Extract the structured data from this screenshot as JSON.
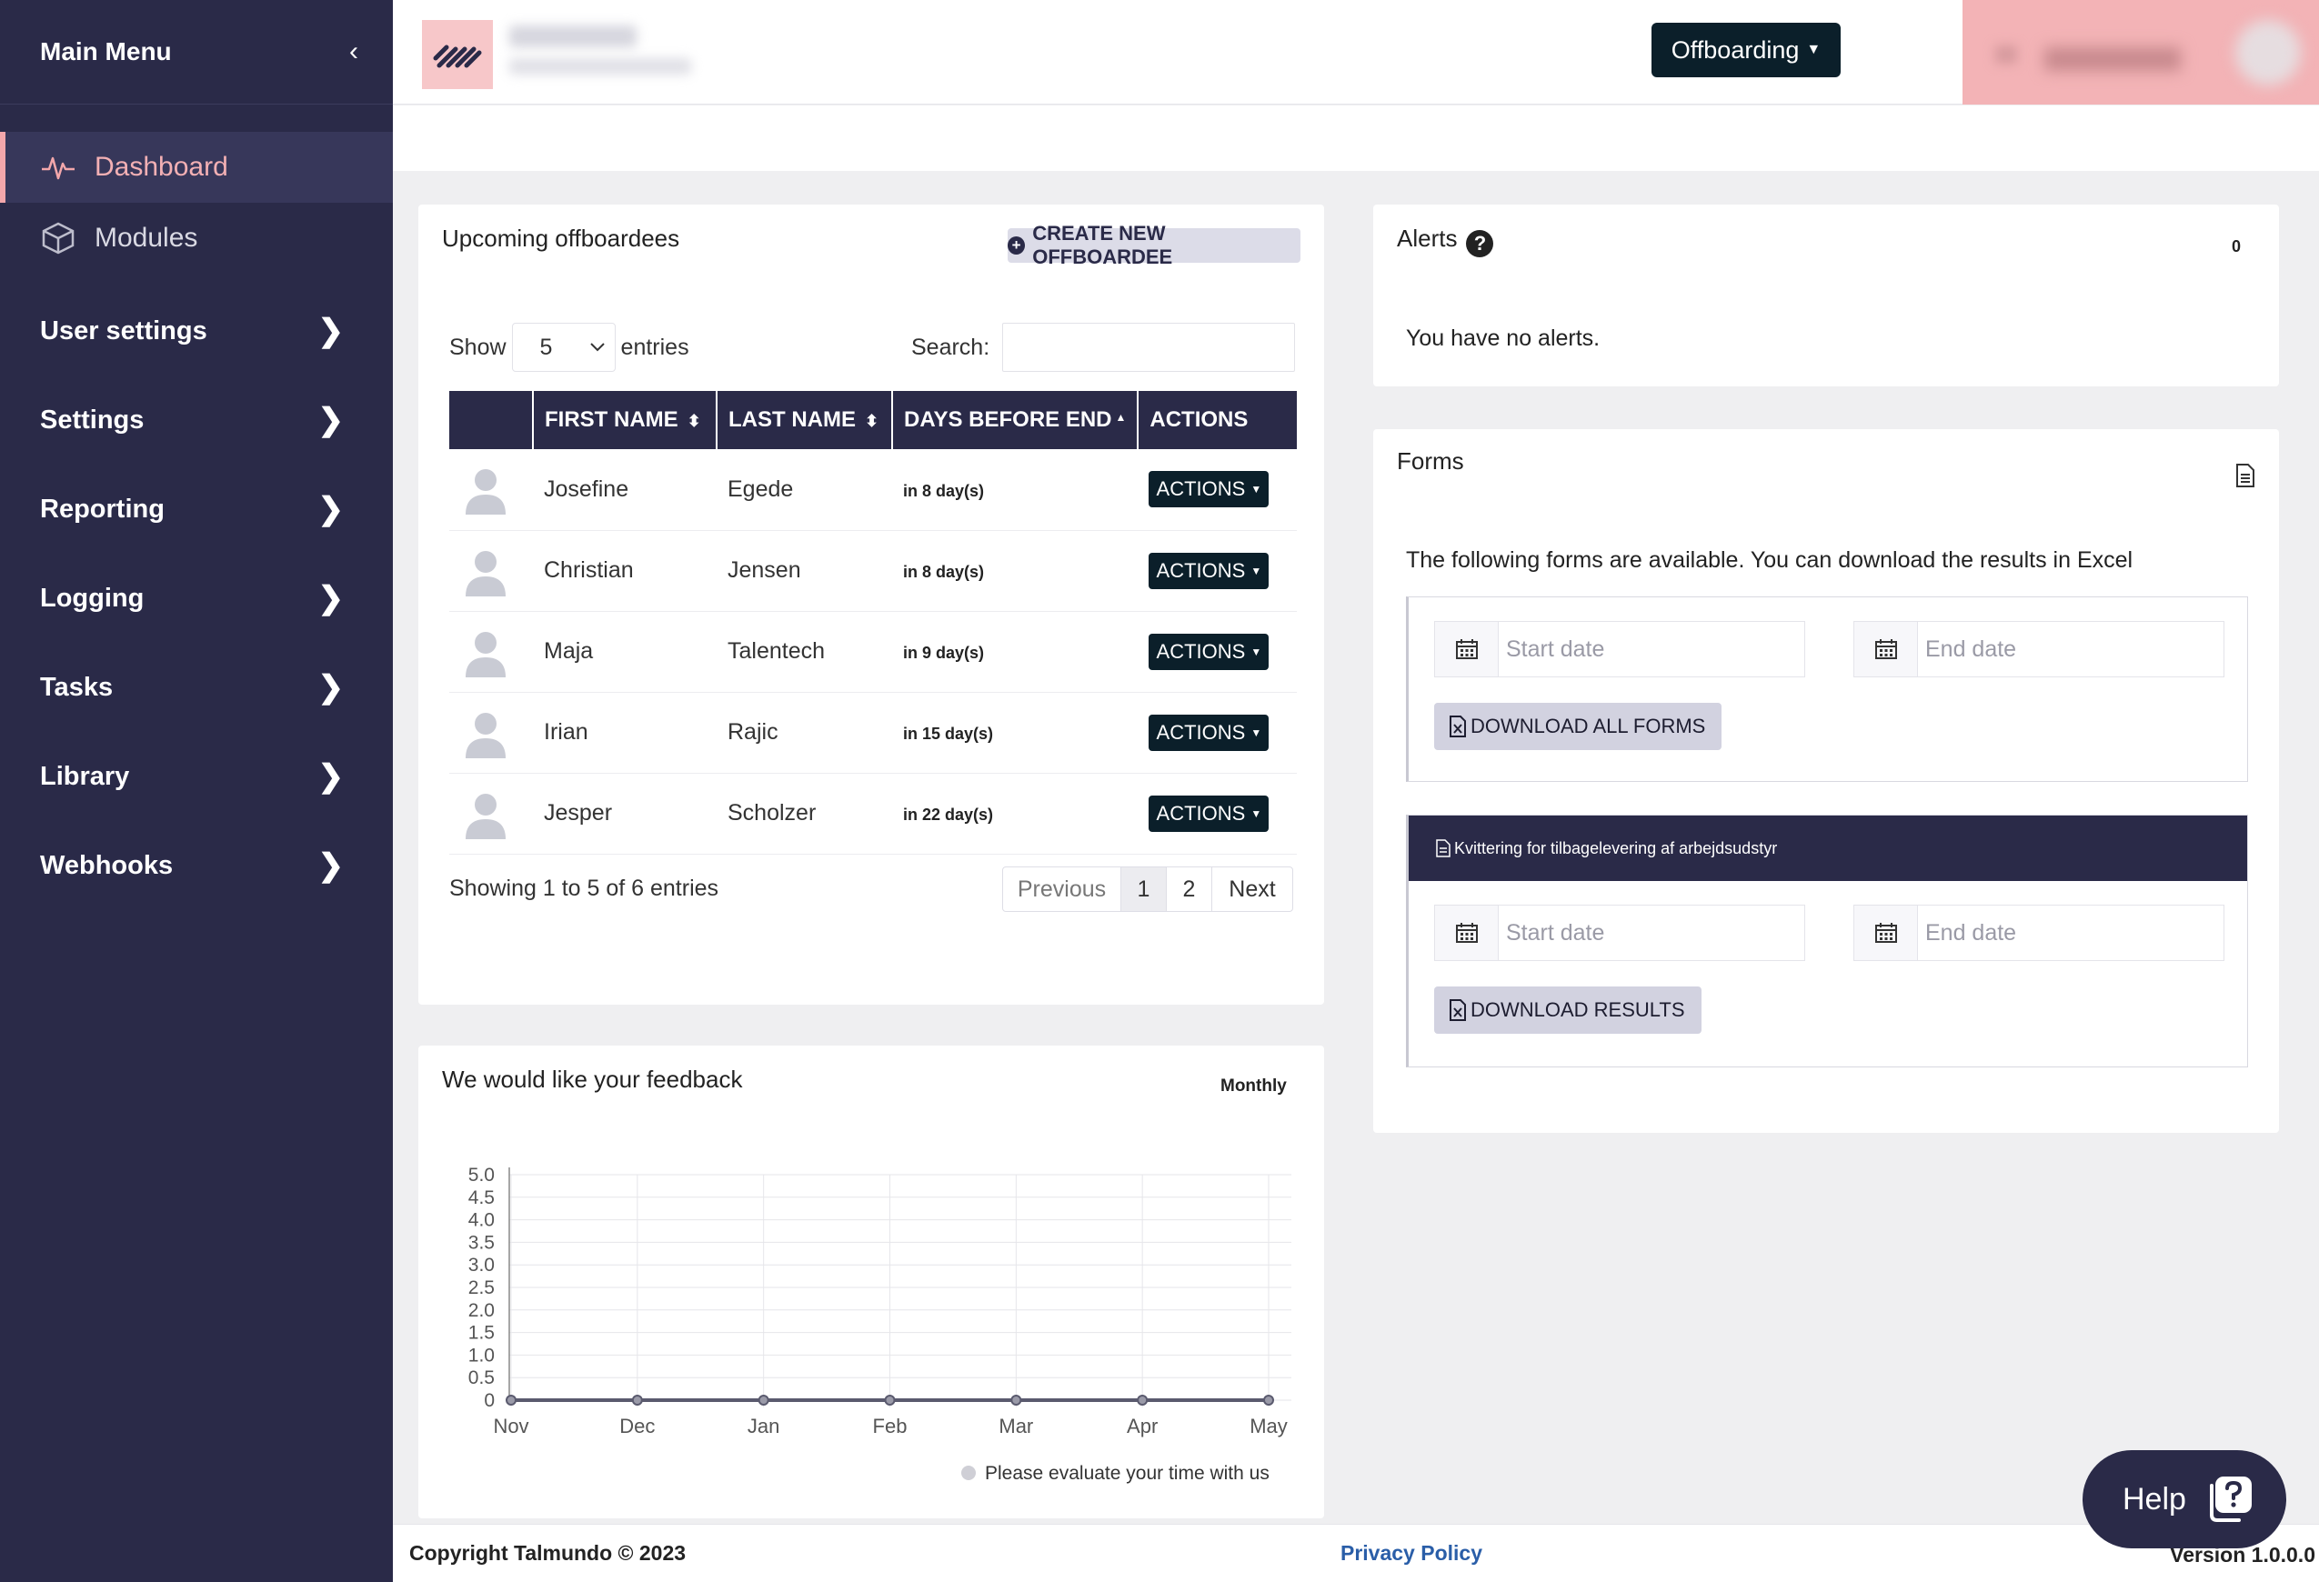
{
  "sidebar": {
    "title": "Main Menu",
    "top_items": [
      {
        "label": "Dashboard",
        "icon": "pulse-icon",
        "active": true
      },
      {
        "label": "Modules",
        "icon": "cube-icon",
        "active": false
      }
    ],
    "groups": [
      "User settings",
      "Settings",
      "Reporting",
      "Logging",
      "Tasks",
      "Library",
      "Webhooks"
    ]
  },
  "topbar": {
    "module_button": "Offboarding"
  },
  "upcoming": {
    "title": "Upcoming offboardees",
    "create_button": "CREATE NEW OFFBOARDEE",
    "show_label": "Show",
    "show_value": "5",
    "entries_label": "entries",
    "search_label": "Search:",
    "search_value": "",
    "columns": [
      "",
      "FIRST NAME",
      "LAST NAME",
      "DAYS BEFORE END",
      "ACTIONS"
    ],
    "rows": [
      {
        "first": "Josefine",
        "last": "Egede",
        "days": "in 8 day(s)",
        "action": "ACTIONS"
      },
      {
        "first": "Christian",
        "last": "Jensen",
        "days": "in 8 day(s)",
        "action": "ACTIONS"
      },
      {
        "first": "Maja",
        "last": "Talentech",
        "days": "in 9 day(s)",
        "action": "ACTIONS"
      },
      {
        "first": "Irian",
        "last": "Rajic",
        "days": "in 15 day(s)",
        "action": "ACTIONS"
      },
      {
        "first": "Jesper",
        "last": "Scholzer",
        "days": "in 22 day(s)",
        "action": "ACTIONS"
      }
    ],
    "showing": "Showing 1 to 5 of 6 entries",
    "pager": {
      "prev": "Previous",
      "pages": [
        "1",
        "2"
      ],
      "next": "Next",
      "current": "1"
    }
  },
  "feedback": {
    "title": "We would like your feedback",
    "period": "Monthly"
  },
  "chart_data": {
    "type": "line",
    "categories": [
      "Nov",
      "Dec",
      "Jan",
      "Feb",
      "Mar",
      "Apr",
      "May"
    ],
    "series": [
      {
        "name": "Please evaluate your time with us",
        "values": [
          0,
          0,
          0,
          0,
          0,
          0,
          0
        ]
      }
    ],
    "ylim": [
      0,
      5
    ],
    "yticks": [
      "0",
      "0.5",
      "1.0",
      "1.5",
      "2.0",
      "2.5",
      "3.0",
      "3.5",
      "4.0",
      "4.5",
      "5.0"
    ],
    "grid": true,
    "legend": "bottom-right",
    "colors": {
      "line": "#5a5a6e",
      "legend_dot": "#cfcfd6"
    }
  },
  "alerts": {
    "title": "Alerts",
    "count": "0",
    "message": "You have no alerts."
  },
  "forms": {
    "title": "Forms",
    "description": "The following forms are available. You can download the results in Excel",
    "all": {
      "start_placeholder": "Start date",
      "end_placeholder": "End date",
      "button": "DOWNLOAD ALL FORMS"
    },
    "form_items": [
      {
        "name": "Kvittering for tilbagelevering af arbejdsudstyr",
        "start_placeholder": "Start date",
        "end_placeholder": "End date",
        "button": "DOWNLOAD RESULTS"
      }
    ]
  },
  "footer": {
    "copyright": "Copyright Talmundo © 2023",
    "privacy": "Privacy Policy",
    "version": "Version 1.0.0.0"
  },
  "help": {
    "label": "Help"
  },
  "colors": {
    "sidebar_bg": "#2a2a48",
    "accent_pink": "#f3a7ab",
    "dark_button": "#0b1f2a",
    "link_blue": "#2a5ea8"
  }
}
